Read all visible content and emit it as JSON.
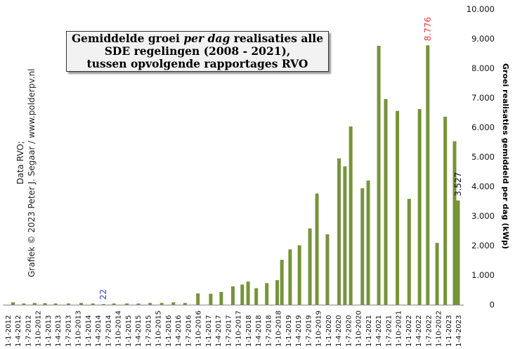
{
  "chart_data": {
    "type": "bar",
    "title_parts": [
      "Gemiddelde  groei ",
      "per dag",
      " realisaties  alle",
      "SDE regelingen (2008 - 2021),",
      "tussen opvolgende rapportages RVO"
    ],
    "ylabel": "Groei realisaties gemiddeld per dag (kWp)",
    "ylim": [
      0,
      10000
    ],
    "yticks": [
      "0",
      "1.000",
      "2.000",
      "3.000",
      "4.000",
      "5.000",
      "6.000",
      "7.000",
      "8.000",
      "9.000",
      "10.000"
    ],
    "grid": false,
    "side_note_1": "Data RVO;",
    "side_note_2": "Grafiek © 2023  Peter J. Segaar / www.polderpv.nl",
    "series_color": "#77933c",
    "annotation_color_max": "#e63a3a",
    "annotation_color_min": "#3a3acd",
    "categories": [
      "1-1-2012",
      "1-4-2012",
      "1-7-2012",
      "1-10-2012",
      "1-1-2013",
      "1-4-2013",
      "1-7-2013",
      "1-10-2013",
      "1-1-2014",
      "1-4-2014",
      "1-7-2014",
      "1-10-2014",
      "1-1-2015",
      "1-4-2015",
      "1-7-2015",
      "1-10-2015",
      "1-1-2016",
      "1-4-2016",
      "1-7-2016",
      "1-10-2016",
      "1-1-2017",
      "1-4-2017",
      "1-7-2017",
      "1-10-2017",
      "1-1-2018",
      "1-4-2018",
      "1-7-2018",
      "1-10-2018",
      "1-1-2019",
      "1-4-2019",
      "1-7-2019",
      "1-10-2019",
      "1-1-2020",
      "1-4-2020",
      "1-7-2020",
      "1-10-2020",
      "1-1-2021",
      "1-4-2021",
      "1-7-2021",
      "1-10-2021",
      "1-1-2022",
      "1-4-2022",
      "1-7-2022",
      "1-10-2022",
      "1-1-2023",
      "1-4-2023"
    ],
    "x_positions": [
      0.45,
      1.38,
      2.3,
      3.2,
      4.1,
      5.2,
      6.3,
      7.3,
      8.2,
      9.1,
      10.2,
      11.2,
      12.2,
      13.2,
      14.2,
      15.2,
      16.3,
      17.4,
      18.3,
      19.3,
      20.1,
      20.6,
      21.3,
      22.2,
      23.1,
      23.5,
      24.2,
      25.0,
      25.9,
      26.5,
      27.4,
      28.4,
      28.9,
      29.4,
      30.4,
      30.9,
      31.8,
      32.4,
      33.4,
      34.4,
      35.3,
      36.0,
      36.8,
      37.5,
      38.3,
      38.6
    ],
    "values": [
      80,
      40,
      60,
      50,
      40,
      40,
      60,
      40,
      22,
      40,
      40,
      40,
      60,
      60,
      80,
      60,
      380,
      370,
      430,
      620,
      680,
      780,
      560,
      730,
      830,
      1520,
      1870,
      2010,
      2580,
      3760,
      2380,
      4950,
      4680,
      6030,
      3940,
      4200,
      8760,
      6960,
      6560,
      3580,
      6620,
      8776,
      2090,
      6360,
      5530,
      3527
    ]
  }
}
